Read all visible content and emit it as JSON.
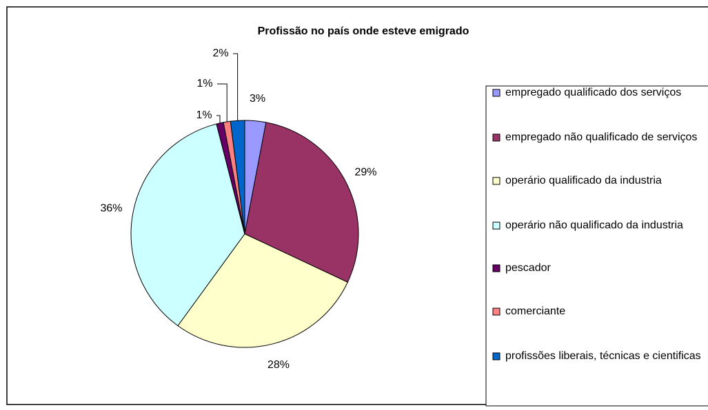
{
  "chart_data": {
    "type": "pie",
    "title": "Profissão no país onde esteve emigrado",
    "categories": [
      "empregado qualificado dos serviços",
      "empregado não qualificado de serviços",
      "operário qualificado da industria",
      "operário não qualificado da industria",
      "pescador",
      "comerciante",
      "profissões liberais, técnicas e cientificas"
    ],
    "values": [
      3,
      29,
      28,
      36,
      1,
      1,
      2
    ],
    "value_labels": [
      "3%",
      "29%",
      "28%",
      "36%",
      "1%",
      "1%",
      "2%"
    ],
    "colors": [
      "#9999ff",
      "#993366",
      "#ffffcc",
      "#ccffff",
      "#660066",
      "#ff8080",
      "#0066cc"
    ],
    "legend": "right"
  }
}
